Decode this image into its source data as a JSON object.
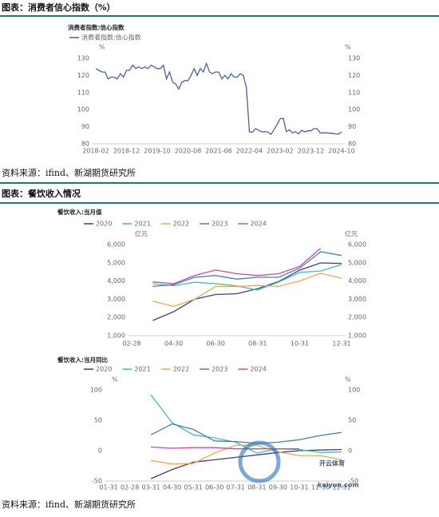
{
  "sections": [
    {
      "heading": "图表：消费者信心指数（%）",
      "source": "资料来源：ifind、新湖期货研究所"
    },
    {
      "heading": "图表：餐饮收入情况",
      "source": "资料来源：ifind、新湖期货研究所"
    }
  ],
  "watermark": {
    "title": "开云体育",
    "url": "kaiyun.com"
  },
  "chart_data": [
    {
      "type": "line",
      "title": "消费者指数:信心指数",
      "y_unit": "%",
      "ylim": [
        80,
        130
      ],
      "yticks": [
        80,
        90,
        100,
        110,
        120,
        130
      ],
      "grid": false,
      "categories": [
        "2018-02",
        null,
        null,
        null,
        null,
        null,
        null,
        null,
        null,
        null,
        "2018-12",
        null,
        null,
        null,
        null,
        null,
        null,
        null,
        null,
        null,
        "2019-10",
        null,
        null,
        null,
        null,
        null,
        null,
        null,
        null,
        null,
        "2020-08",
        null,
        null,
        null,
        null,
        null,
        null,
        null,
        null,
        null,
        "2021-06",
        null,
        null,
        null,
        null,
        null,
        null,
        null,
        null,
        null,
        "2022-04",
        null,
        null,
        null,
        null,
        null,
        null,
        null,
        null,
        null,
        "2023-02",
        null,
        null,
        null,
        null,
        null,
        null,
        null,
        null,
        null,
        "2023-12",
        null,
        null,
        null,
        null,
        null,
        null,
        null,
        null,
        null,
        "2024-10"
      ],
      "series": [
        {
          "name": "消费者指数:信心指数",
          "color": "#4a5fa8",
          "values": [
            124,
            123,
            122,
            122,
            118,
            119,
            119,
            118,
            121,
            119,
            123,
            123,
            126,
            124,
            125,
            124,
            125,
            124,
            126,
            125,
            124,
            124,
            126,
            118,
            122,
            116,
            115,
            112,
            116,
            117,
            117,
            120,
            124,
            120,
            124,
            122,
            127,
            122,
            121,
            122,
            122,
            118,
            120,
            118,
            121,
            119,
            119,
            121,
            120,
            113,
            87,
            86.8,
            88.9,
            87.9,
            87,
            87.2,
            86.8,
            85.5,
            88.3,
            91.2,
            94.7,
            94.9,
            87.1,
            88.2,
            86.4,
            87.1,
            85.8,
            87.9,
            87,
            87.6,
            87.6,
            88.9,
            88.9,
            86.4,
            86.4,
            86.4,
            86.2,
            86.2,
            85.8,
            85.7,
            86.9
          ]
        }
      ]
    },
    {
      "type": "line",
      "title": "餐饮收入:当月值",
      "y_unit": "亿元",
      "ylim": [
        1000,
        6000
      ],
      "yticks": [
        {
          "value": 1000,
          "label": "1,000"
        },
        {
          "value": 2000,
          "label": "2,000"
        },
        {
          "value": 3000,
          "label": "3,000"
        },
        {
          "value": 4000,
          "label": "4,000"
        },
        {
          "value": 5000,
          "label": "5,000"
        },
        {
          "value": 6000,
          "label": "6,000"
        }
      ],
      "grid": false,
      "categories": [
        "02-28",
        null,
        "04-30",
        null,
        "06-30",
        null,
        "08-31",
        null,
        "10-31",
        null,
        "12-31"
      ],
      "series": [
        {
          "name": "2020",
          "color": "#3b3f8f",
          "values": [
            null,
            1830,
            2310,
            3000,
            3260,
            3300,
            3580,
            3970,
            4590,
            4990,
            4960
          ]
        },
        {
          "name": "2021",
          "color": "#3cc0b5",
          "values": [
            null,
            3850,
            3740,
            3930,
            3850,
            3730,
            3500,
            3940,
            4470,
            4550,
            4900
          ]
        },
        {
          "name": "2022",
          "color": "#f5a54a",
          "values": [
            null,
            2900,
            2600,
            3000,
            3700,
            3700,
            3750,
            3700,
            4000,
            4420,
            4150
          ]
        },
        {
          "name": "2023",
          "color": "#4a7fb0",
          "values": [
            null,
            3700,
            3800,
            4200,
            4300,
            4100,
            4200,
            4200,
            4700,
            5600,
            5400
          ]
        },
        {
          "name": "2024",
          "color": "#c84ca0",
          "values": [
            null,
            3950,
            3850,
            4300,
            4600,
            4400,
            4300,
            4400,
            4800,
            5800,
            null
          ]
        }
      ]
    },
    {
      "type": "line",
      "title": "餐饮收入:当月同比",
      "y_unit": "%",
      "ylim": [
        -50,
        100
      ],
      "yticks": [
        -50,
        0,
        50,
        100
      ],
      "grid": false,
      "categories": [
        "01-31",
        "02-28",
        "03-31",
        "04-30",
        "05-31",
        "06-30",
        "07-31",
        "08-31",
        "09-30",
        "10-31",
        "11-30",
        "12-31"
      ],
      "series": [
        {
          "name": "2020",
          "color": "#3b3f8f",
          "values": [
            null,
            null,
            -46,
            -31,
            -19,
            -15,
            -11,
            -7,
            -3,
            0,
            1,
            2
          ]
        },
        {
          "name": "2021",
          "color": "#3cc0b5",
          "values": [
            null,
            null,
            92,
            46,
            26,
            21,
            14,
            -4,
            3,
            2,
            -3,
            -2
          ]
        },
        {
          "name": "2022",
          "color": "#f5a54a",
          "values": [
            null,
            null,
            -16,
            -22,
            -21,
            -4,
            9,
            9,
            -2,
            -8,
            -8,
            -15
          ]
        },
        {
          "name": "2023",
          "color": "#4a7fb0",
          "values": [
            null,
            null,
            26,
            44,
            35,
            16,
            15,
            12,
            14,
            18,
            25,
            30
          ]
        },
        {
          "name": "2024",
          "color": "#c84ca0",
          "values": [
            null,
            null,
            6,
            4,
            5,
            5,
            3,
            3,
            3,
            3,
            null,
            null
          ]
        }
      ]
    }
  ]
}
